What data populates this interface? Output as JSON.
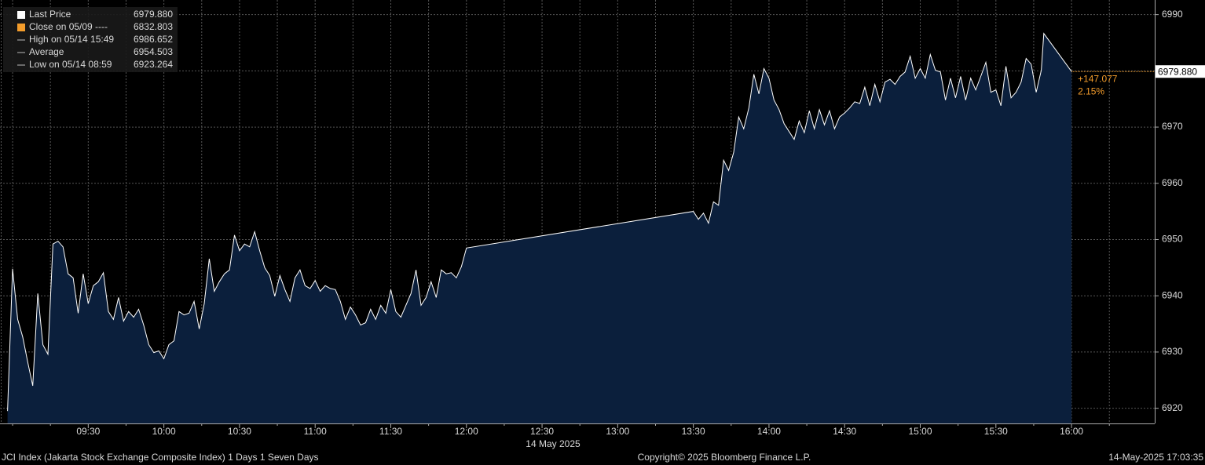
{
  "chart_data": {
    "type": "area",
    "legend": [
      {
        "label": "Last Price",
        "value": "6979.880",
        "color": "#ffffff"
      },
      {
        "label": "Close on 05/09 ----",
        "value": "6832.803",
        "color": "#f39c2b"
      },
      {
        "label": "High on 05/14 15:49",
        "value": "6986.652",
        "color": "#bbbbbb"
      },
      {
        "label": "Average",
        "value": "6954.503",
        "color": "#bbbbbb"
      },
      {
        "label": "Low on 05/14 08:59",
        "value": "6923.264",
        "color": "#bbbbbb"
      }
    ],
    "x": [
      "08:58",
      "09:00",
      "09:02",
      "09:04",
      "09:06",
      "09:08",
      "09:10",
      "09:12",
      "09:14",
      "09:16",
      "09:18",
      "09:20",
      "09:22",
      "09:24",
      "09:26",
      "09:28",
      "09:30",
      "09:32",
      "09:34",
      "09:36",
      "09:38",
      "09:40",
      "09:42",
      "09:44",
      "09:46",
      "09:48",
      "09:50",
      "09:52",
      "09:54",
      "09:56",
      "09:58",
      "10:00",
      "10:02",
      "10:04",
      "10:06",
      "10:08",
      "10:10",
      "10:12",
      "10:14",
      "10:16",
      "10:18",
      "10:20",
      "10:22",
      "10:24",
      "10:26",
      "10:28",
      "10:30",
      "10:32",
      "10:34",
      "10:36",
      "10:38",
      "10:40",
      "10:42",
      "10:44",
      "10:46",
      "10:48",
      "10:50",
      "10:52",
      "10:54",
      "10:56",
      "10:58",
      "11:00",
      "11:02",
      "11:04",
      "11:06",
      "11:08",
      "11:10",
      "11:12",
      "11:14",
      "11:16",
      "11:18",
      "11:20",
      "11:22",
      "11:24",
      "11:26",
      "11:28",
      "11:30",
      "11:32",
      "11:34",
      "11:36",
      "11:38",
      "11:40",
      "11:42",
      "11:44",
      "11:46",
      "11:48",
      "11:50",
      "11:52",
      "11:54",
      "11:56",
      "11:58",
      "12:00",
      "13:30",
      "13:32",
      "13:34",
      "13:36",
      "13:38",
      "13:40",
      "13:42",
      "13:44",
      "13:46",
      "13:48",
      "13:50",
      "13:52",
      "13:54",
      "13:56",
      "13:58",
      "14:00",
      "14:02",
      "14:04",
      "14:06",
      "14:08",
      "14:10",
      "14:12",
      "14:14",
      "14:16",
      "14:18",
      "14:20",
      "14:22",
      "14:24",
      "14:26",
      "14:28",
      "14:30",
      "14:32",
      "14:34",
      "14:36",
      "14:38",
      "14:40",
      "14:42",
      "14:44",
      "14:46",
      "14:48",
      "14:50",
      "14:52",
      "14:54",
      "14:56",
      "14:58",
      "15:00",
      "15:02",
      "15:04",
      "15:06",
      "15:08",
      "15:10",
      "15:12",
      "15:14",
      "15:16",
      "15:18",
      "15:20",
      "15:22",
      "15:24",
      "15:26",
      "15:28",
      "15:30",
      "15:32",
      "15:34",
      "15:36",
      "15:38",
      "15:40",
      "15:42",
      "15:44",
      "15:46",
      "15:48",
      "15:49",
      "16:00"
    ],
    "series": [
      {
        "name": "Last Price",
        "color": "#ffffff",
        "fill": "#0b1f3c",
        "values": [
          6919.5,
          6944.8,
          6935.8,
          6932.7,
          6928.2,
          6924.0,
          6940.4,
          6931.3,
          6929.6,
          6949.2,
          6949.7,
          6948.7,
          6943.9,
          6943.2,
          6936.9,
          6943.9,
          6938.6,
          6941.8,
          6942.5,
          6944.1,
          6937.2,
          6935.8,
          6939.7,
          6935.5,
          6937.2,
          6936.2,
          6937.6,
          6934.8,
          6931.3,
          6929.9,
          6930.2,
          6928.8,
          6931.3,
          6932.0,
          6937.2,
          6936.6,
          6936.9,
          6939.0,
          6934.1,
          6938.6,
          6946.6,
          6940.8,
          6942.5,
          6943.9,
          6944.6,
          6950.8,
          6948.0,
          6949.2,
          6948.7,
          6951.4,
          6948.0,
          6945.0,
          6943.6,
          6939.9,
          6943.6,
          6941.1,
          6939.0,
          6943.2,
          6944.6,
          6941.8,
          6941.3,
          6942.7,
          6940.8,
          6941.8,
          6941.3,
          6941.1,
          6939.0,
          6935.8,
          6938.0,
          6936.6,
          6934.8,
          6935.2,
          6937.6,
          6935.8,
          6938.3,
          6936.9,
          6941.1,
          6937.2,
          6936.2,
          6938.3,
          6940.4,
          6944.6,
          6938.3,
          6939.7,
          6942.5,
          6939.7,
          6944.6,
          6943.9,
          6944.1,
          6943.2,
          6945.2,
          6948.5,
          6955.0,
          6953.6,
          6954.7,
          6952.9,
          6956.7,
          6956.1,
          6964.1,
          6962.3,
          6965.5,
          6971.8,
          6969.7,
          6973.4,
          6979.4,
          6975.9,
          6980.4,
          6978.7,
          6974.8,
          6973.1,
          6970.6,
          6969.2,
          6967.8,
          6971.1,
          6969.0,
          6972.9,
          6969.7,
          6973.1,
          6970.4,
          6972.9,
          6969.7,
          6971.8,
          6972.5,
          6973.4,
          6974.5,
          6974.2,
          6977.1,
          6973.8,
          6977.6,
          6974.5,
          6978.0,
          6978.5,
          6977.6,
          6979.0,
          6979.8,
          6982.6,
          6978.7,
          6980.4,
          6978.7,
          6982.9,
          6980.1,
          6979.8,
          6974.8,
          6978.7,
          6975.2,
          6979.0,
          6974.8,
          6978.7,
          6976.6,
          6979.0,
          6981.5,
          6976.2,
          6976.6,
          6973.8,
          6980.8,
          6975.2,
          6976.2,
          6978.0,
          6982.2,
          6981.2,
          6976.2,
          6980.1,
          6986.652,
          6979.88
        ]
      }
    ],
    "xlim": [
      "08:55",
      "16:33"
    ],
    "xticks": [
      "09:30",
      "10:00",
      "10:30",
      "11:00",
      "11:30",
      "12:00",
      "12:30",
      "13:00",
      "13:30",
      "14:00",
      "14:30",
      "15:00",
      "15:30",
      "16:00"
    ],
    "xticks_minor": [
      "09:00",
      "09:15",
      "09:45",
      "10:15",
      "10:45",
      "11:15",
      "11:45",
      "12:15",
      "12:45",
      "13:15",
      "13:45",
      "14:15",
      "14:45",
      "15:15",
      "15:45",
      "16:15"
    ],
    "x_date_label": "14 May 2025",
    "ylim": [
      6917.3,
      6992.6
    ],
    "yticks": [
      6920,
      6930,
      6940,
      6950,
      6960,
      6970,
      6980,
      6990
    ],
    "grid": true,
    "last_value": 6979.88,
    "last_label": "6979.880",
    "change": "+147.077",
    "change_pct": "2.15%",
    "footer": {
      "left": "JCI Index (Jakarta Stock Exchange Composite Index) 1 Days 1 Seven Days",
      "center": "Copyright© 2025 Bloomberg Finance L.P.",
      "right": "14-May-2025 17:03:35"
    }
  }
}
